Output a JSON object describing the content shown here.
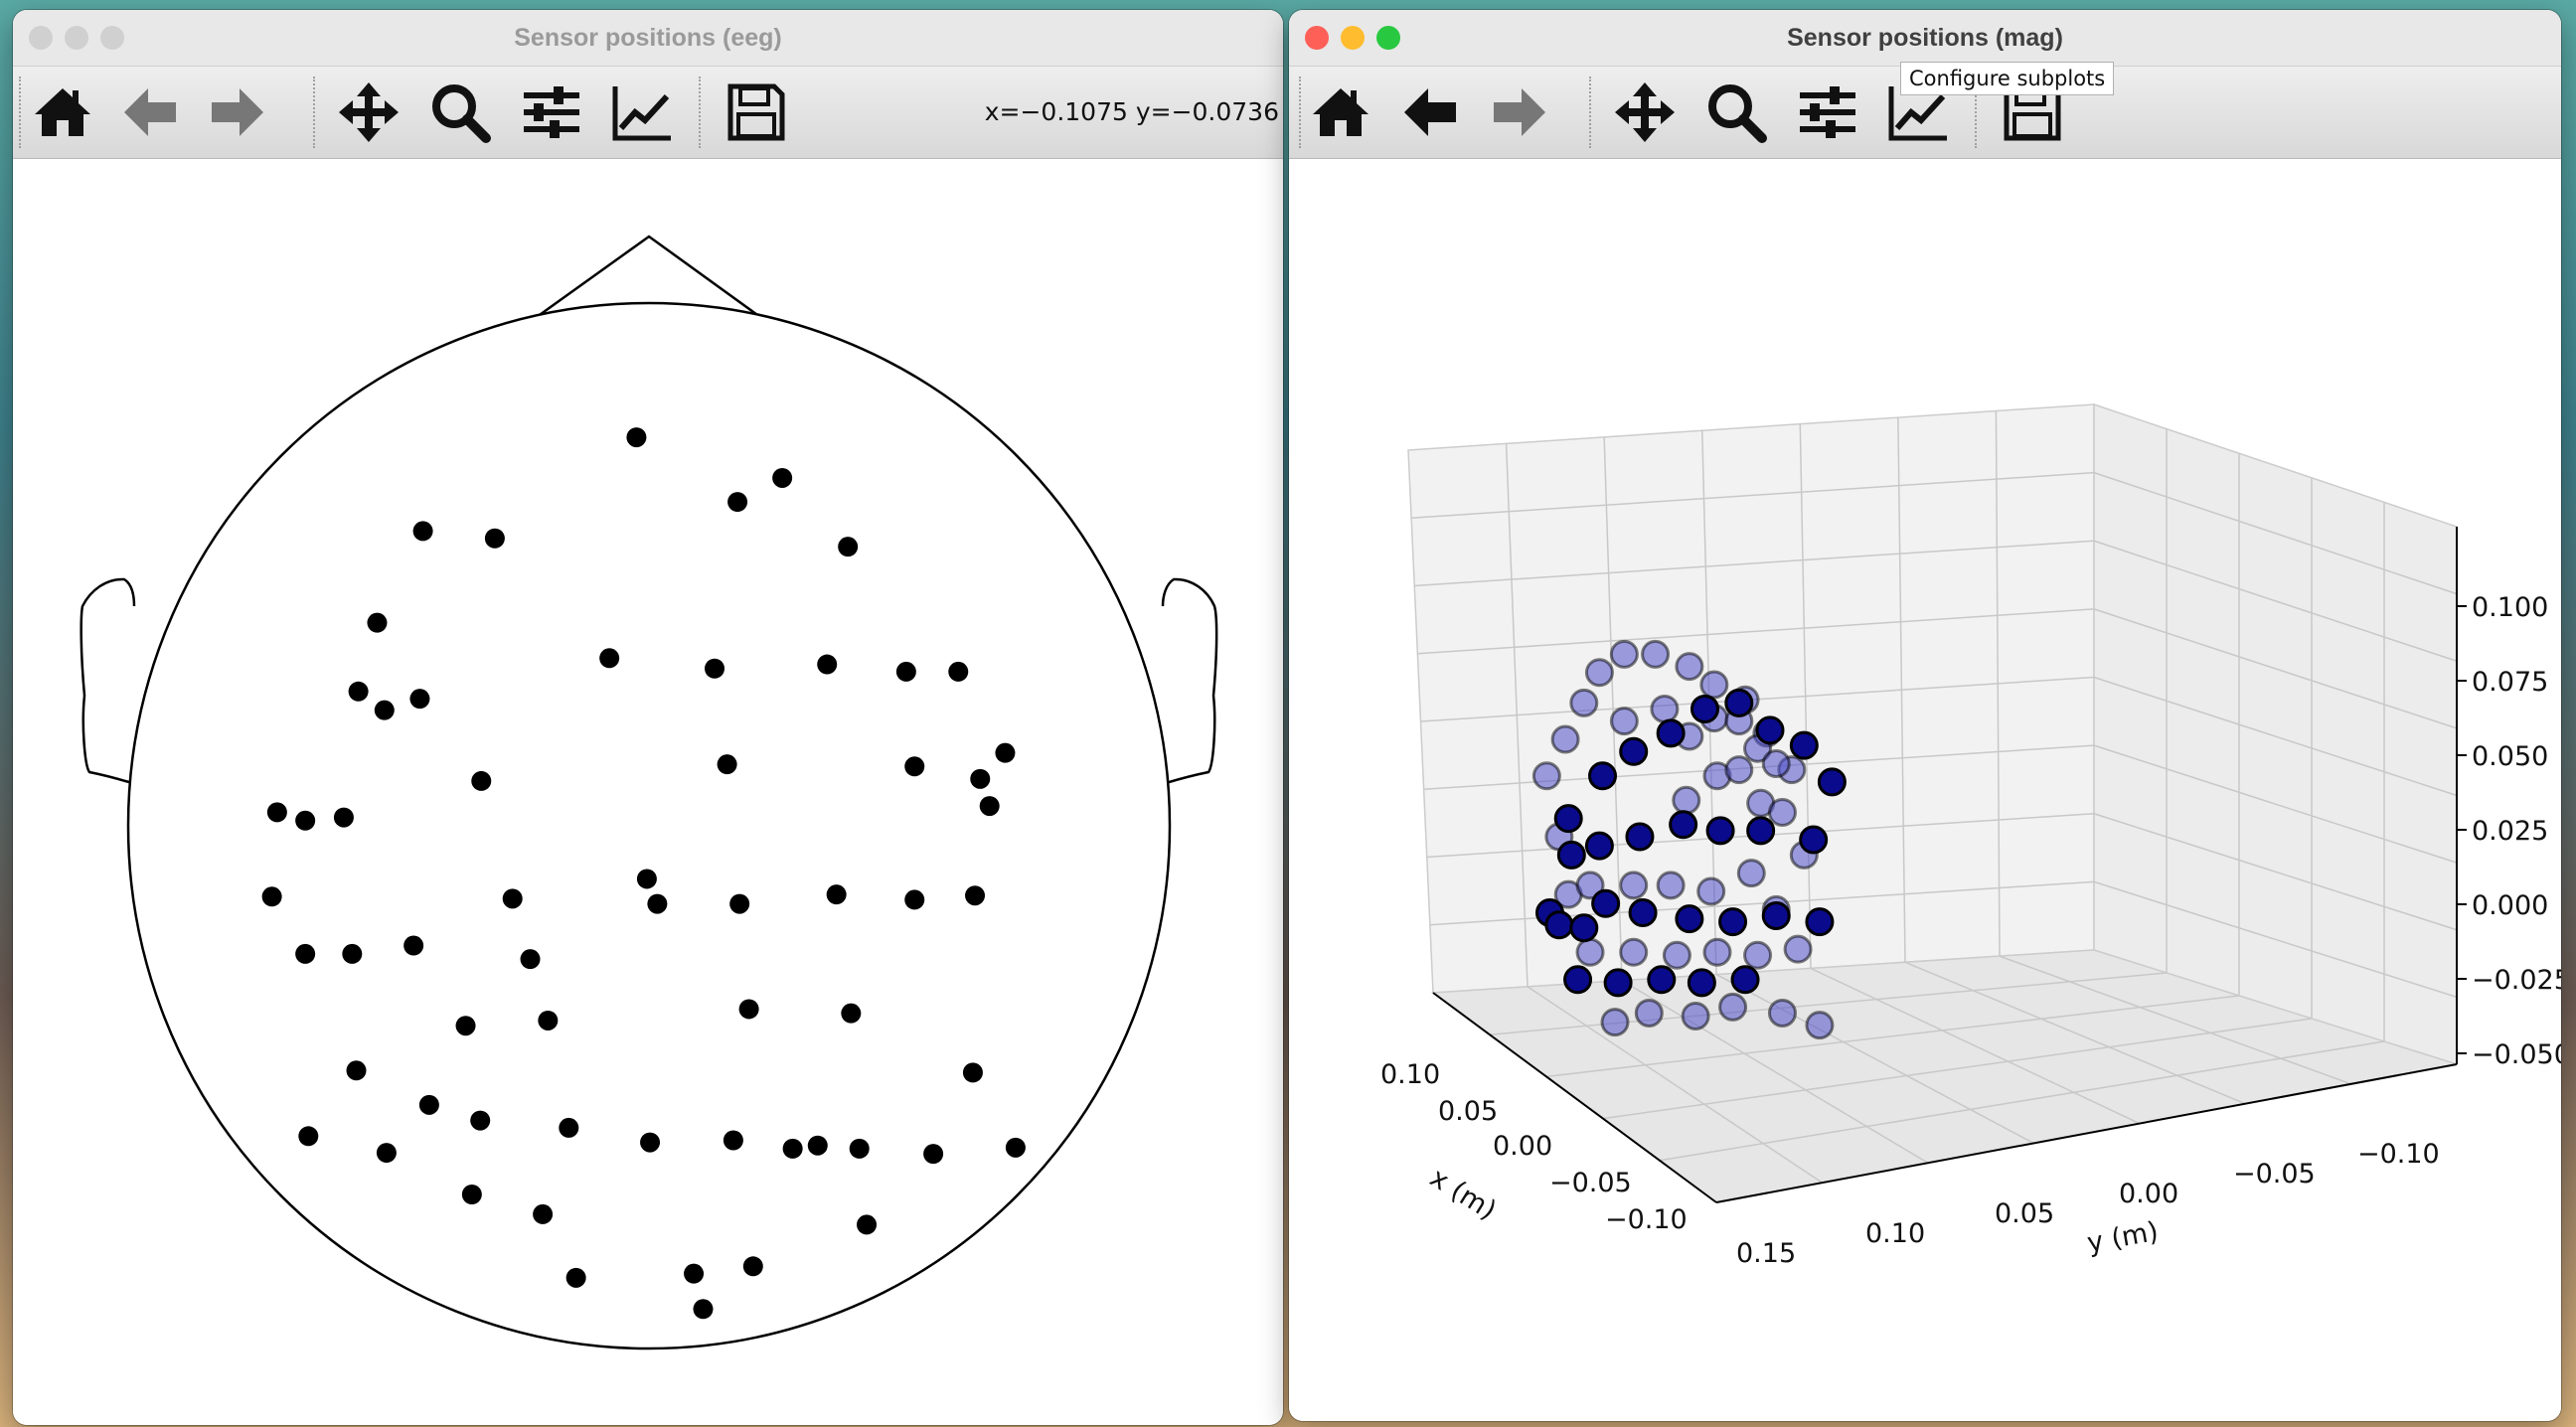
{
  "windows": {
    "eeg": {
      "title": "Sensor positions (eeg)",
      "coordinates": "x=−0.1075 y=−0.0736",
      "toolbar": [
        "home-icon",
        "back-arrow-icon",
        "forward-arrow-icon",
        "pan-icon",
        "zoom-icon",
        "configure-subplots-icon",
        "edit-axis-icon",
        "save-icon"
      ]
    },
    "mag": {
      "title": "Sensor positions (mag)",
      "tooltip": "Configure subplots",
      "toolbar": [
        "home-icon",
        "back-arrow-icon",
        "forward-arrow-icon",
        "pan-icon",
        "zoom-icon",
        "configure-subplots-icon",
        "edit-axis-icon",
        "save-icon"
      ]
    }
  },
  "colors": {
    "traffic_close": "#fe5f57",
    "traffic_minimize": "#febc2e",
    "traffic_maximize": "#28c840",
    "traffic_inactive": "#d0d0d0",
    "sensor_eeg": "#000000",
    "sensor_mag": "#0a0a8c"
  },
  "chart_data": [
    {
      "type": "scatter",
      "name": "eeg-topomap",
      "x": [
        -0.012,
        0.085,
        0.128,
        -0.217,
        -0.148,
        0.191,
        -0.261,
        -0.279,
        -0.22,
        -0.254,
        -0.038,
        0.063,
        0.171,
        0.247,
        0.297,
        0.075,
        -0.161,
        -0.33,
        -0.293,
        -0.357,
        0.255,
        0.318,
        0.342,
        0.327,
        -0.131,
        -0.002,
        0.008,
        0.087,
        0.18,
        0.255,
        0.313,
        -0.362,
        -0.33,
        -0.285,
        -0.226,
        -0.114,
        0.096,
        0.194,
        -0.176,
        -0.097,
        -0.281,
        -0.211,
        -0.327,
        -0.252,
        -0.162,
        -0.077,
        0.001,
        0.081,
        0.138,
        0.162,
        0.202,
        0.273,
        0.352,
        0.311,
        -0.102,
        -0.17,
        0.209,
        0.1,
        -0.07,
        0.043,
        0.052
      ],
      "y": [
        0.373,
        0.311,
        0.334,
        0.283,
        0.276,
        0.268,
        0.195,
        0.129,
        0.122,
        0.111,
        0.161,
        0.151,
        0.155,
        0.148,
        0.148,
        0.059,
        0.043,
        0.005,
        0.008,
        0.013,
        0.057,
        0.045,
        0.07,
        0.019,
        -0.07,
        -0.051,
        -0.075,
        -0.075,
        -0.066,
        -0.071,
        -0.067,
        -0.068,
        -0.123,
        -0.123,
        -0.115,
        -0.128,
        -0.176,
        -0.18,
        -0.192,
        -0.187,
        -0.235,
        -0.268,
        -0.298,
        -0.314,
        -0.283,
        -0.29,
        -0.304,
        -0.302,
        -0.31,
        -0.307,
        -0.31,
        -0.315,
        -0.309,
        -0.237,
        -0.373,
        -0.354,
        -0.383,
        -0.423,
        -0.434,
        -0.43,
        -0.464
      ],
      "marker_color": "#000000"
    },
    {
      "type": "scatter",
      "name": "mag-3d",
      "xlabel": "x (m)",
      "ylabel": "y (m)",
      "x_ticks": [
        "0.10",
        "0.05",
        "0.00",
        "−0.05",
        "−0.10"
      ],
      "y_ticks": [
        "0.15",
        "0.10",
        "0.05",
        "0.00",
        "−0.05",
        "−0.10"
      ],
      "z_ticks": [
        "0.100",
        "0.075",
        "0.050",
        "0.025",
        "0.000",
        "−0.025",
        "−0.050"
      ],
      "points_screen_hint": "points listed as projected view positions; depth given as 'front' or 'back'",
      "points": [
        [
          0.1,
          0.06,
          "back"
        ],
        [
          0.14,
          0.03,
          "back"
        ],
        [
          0.19,
          0.03,
          "back"
        ],
        [
          0.245,
          0.05,
          "back"
        ],
        [
          0.285,
          0.08,
          "back"
        ],
        [
          0.335,
          0.105,
          "back"
        ],
        [
          0.37,
          0.16,
          "back"
        ],
        [
          0.41,
          0.22,
          "back"
        ],
        [
          0.015,
          0.23,
          "back"
        ],
        [
          0.045,
          0.17,
          "back"
        ],
        [
          0.075,
          0.11,
          "back"
        ],
        [
          0.14,
          0.14,
          "back"
        ],
        [
          0.205,
          0.12,
          "back"
        ],
        [
          0.245,
          0.165,
          "back"
        ],
        [
          0.285,
          0.135,
          "back"
        ],
        [
          0.325,
          0.14,
          "back"
        ],
        [
          0.355,
          0.185,
          "back"
        ],
        [
          0.385,
          0.21,
          "back"
        ],
        [
          0.24,
          0.27,
          "back"
        ],
        [
          0.29,
          0.23,
          "back"
        ],
        [
          0.325,
          0.22,
          "back"
        ],
        [
          0.36,
          0.275,
          "back"
        ],
        [
          0.395,
          0.29,
          "back"
        ],
        [
          0.43,
          0.36,
          "back"
        ],
        [
          0.035,
          0.33,
          "back"
        ],
        [
          0.05,
          0.425,
          "back"
        ],
        [
          0.085,
          0.41,
          "back"
        ],
        [
          0.155,
          0.41,
          "back"
        ],
        [
          0.215,
          0.41,
          "back"
        ],
        [
          0.28,
          0.42,
          "back"
        ],
        [
          0.345,
          0.39,
          "back"
        ],
        [
          0.385,
          0.45,
          "back"
        ],
        [
          0.085,
          0.52,
          "back"
        ],
        [
          0.155,
          0.52,
          "back"
        ],
        [
          0.225,
          0.525,
          "back"
        ],
        [
          0.29,
          0.52,
          "back"
        ],
        [
          0.355,
          0.525,
          "back"
        ],
        [
          0.42,
          0.515,
          "back"
        ],
        [
          0.125,
          0.635,
          "back"
        ],
        [
          0.18,
          0.62,
          "back"
        ],
        [
          0.255,
          0.625,
          "back"
        ],
        [
          0.315,
          0.61,
          "back"
        ],
        [
          0.395,
          0.62,
          "back"
        ],
        [
          0.455,
          0.64,
          "back"
        ],
        [
          0.105,
          0.23,
          "front"
        ],
        [
          0.155,
          0.19,
          "front"
        ],
        [
          0.215,
          0.16,
          "front"
        ],
        [
          0.27,
          0.12,
          "front"
        ],
        [
          0.325,
          0.11,
          "front"
        ],
        [
          0.375,
          0.155,
          "front"
        ],
        [
          0.43,
          0.18,
          "front"
        ],
        [
          0.475,
          0.24,
          "front"
        ],
        [
          0.05,
          0.3,
          "front"
        ],
        [
          0.055,
          0.36,
          "front"
        ],
        [
          0.1,
          0.345,
          "front"
        ],
        [
          0.165,
          0.33,
          "front"
        ],
        [
          0.235,
          0.31,
          "front"
        ],
        [
          0.295,
          0.32,
          "front"
        ],
        [
          0.36,
          0.32,
          "front"
        ],
        [
          0.445,
          0.335,
          "front"
        ],
        [
          0.02,
          0.455,
          "front"
        ],
        [
          0.035,
          0.475,
          "front"
        ],
        [
          0.075,
          0.48,
          "front"
        ],
        [
          0.11,
          0.44,
          "front"
        ],
        [
          0.17,
          0.455,
          "front"
        ],
        [
          0.245,
          0.465,
          "front"
        ],
        [
          0.315,
          0.47,
          "front"
        ],
        [
          0.385,
          0.46,
          "front"
        ],
        [
          0.455,
          0.47,
          "front"
        ],
        [
          0.065,
          0.565,
          "front"
        ],
        [
          0.13,
          0.57,
          "front"
        ],
        [
          0.2,
          0.565,
          "front"
        ],
        [
          0.265,
          0.57,
          "front"
        ],
        [
          0.335,
          0.565,
          "front"
        ]
      ]
    }
  ]
}
